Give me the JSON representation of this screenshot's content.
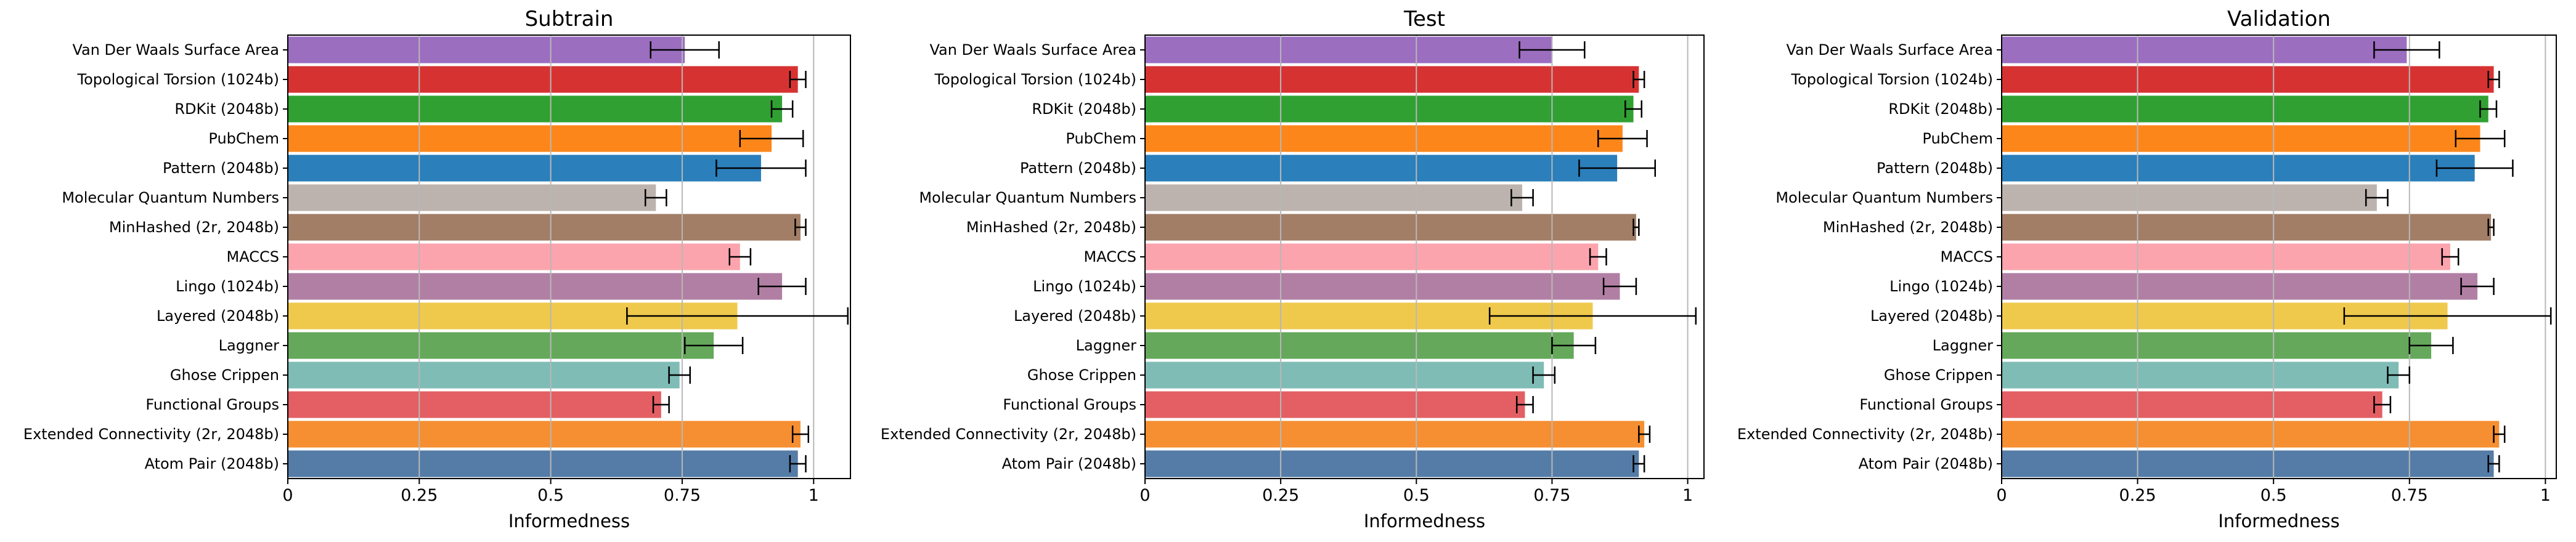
{
  "chart_data": [
    {
      "type": "bar",
      "orientation": "horizontal",
      "title": "Subtrain",
      "xlabel": "Informedness",
      "ylabel": "",
      "xlim": [
        0,
        1.07
      ],
      "xticks": [
        0,
        0.25,
        0.5,
        0.75,
        1
      ],
      "xtick_labels": [
        "0",
        "0.25",
        "0.5",
        "0.75",
        "1"
      ],
      "grid": "vertical",
      "categories": [
        "Van Der Waals Surface Area",
        "Topological Torsion (1024b)",
        "RDKit (2048b)",
        "PubChem",
        "Pattern (2048b)",
        "Molecular Quantum Numbers",
        "MinHashed (2r, 2048b)",
        "MACCS",
        "Lingo (1024b)",
        "Layered (2048b)",
        "Laggner",
        "Ghose Crippen",
        "Functional Groups",
        "Extended Connectivity (2r, 2048b)",
        "Atom Pair (2048b)"
      ],
      "values": [
        0.755,
        0.97,
        0.94,
        0.92,
        0.9,
        0.7,
        0.975,
        0.86,
        0.94,
        0.855,
        0.81,
        0.745,
        0.71,
        0.975,
        0.97
      ],
      "errors": [
        0.065,
        0.015,
        0.02,
        0.06,
        0.085,
        0.02,
        0.01,
        0.02,
        0.045,
        0.21,
        0.055,
        0.02,
        0.015,
        0.015,
        0.015
      ]
    },
    {
      "type": "bar",
      "orientation": "horizontal",
      "title": "Test",
      "xlabel": "Informedness",
      "ylabel": "",
      "xlim": [
        0,
        1.03
      ],
      "xticks": [
        0,
        0.25,
        0.5,
        0.75,
        1
      ],
      "xtick_labels": [
        "0",
        "0.25",
        "0.5",
        "0.75",
        "1"
      ],
      "grid": "vertical",
      "categories": [
        "Van Der Waals Surface Area",
        "Topological Torsion (1024b)",
        "RDKit (2048b)",
        "PubChem",
        "Pattern (2048b)",
        "Molecular Quantum Numbers",
        "MinHashed (2r, 2048b)",
        "MACCS",
        "Lingo (1024b)",
        "Layered (2048b)",
        "Laggner",
        "Ghose Crippen",
        "Functional Groups",
        "Extended Connectivity (2r, 2048b)",
        "Atom Pair (2048b)"
      ],
      "values": [
        0.75,
        0.91,
        0.9,
        0.88,
        0.87,
        0.695,
        0.905,
        0.835,
        0.875,
        0.825,
        0.79,
        0.735,
        0.7,
        0.92,
        0.91
      ],
      "errors": [
        0.06,
        0.01,
        0.015,
        0.045,
        0.07,
        0.02,
        0.005,
        0.015,
        0.03,
        0.19,
        0.04,
        0.02,
        0.015,
        0.01,
        0.01
      ]
    },
    {
      "type": "bar",
      "orientation": "horizontal",
      "title": "Validation",
      "xlabel": "Informedness",
      "ylabel": "",
      "xlim": [
        0,
        1.02
      ],
      "xticks": [
        0,
        0.25,
        0.5,
        0.75,
        1
      ],
      "xtick_labels": [
        "0",
        "0.25",
        "0.5",
        "0.75",
        "1"
      ],
      "grid": "vertical",
      "categories": [
        "Van Der Waals Surface Area",
        "Topological Torsion (1024b)",
        "RDKit (2048b)",
        "PubChem",
        "Pattern (2048b)",
        "Molecular Quantum Numbers",
        "MinHashed (2r, 2048b)",
        "MACCS",
        "Lingo (1024b)",
        "Layered (2048b)",
        "Laggner",
        "Ghose Crippen",
        "Functional Groups",
        "Extended Connectivity (2r, 2048b)",
        "Atom Pair (2048b)"
      ],
      "values": [
        0.745,
        0.905,
        0.895,
        0.88,
        0.87,
        0.69,
        0.9,
        0.825,
        0.875,
        0.82,
        0.79,
        0.73,
        0.7,
        0.915,
        0.905
      ],
      "errors": [
        0.06,
        0.01,
        0.015,
        0.045,
        0.07,
        0.02,
        0.005,
        0.015,
        0.03,
        0.19,
        0.04,
        0.02,
        0.015,
        0.01,
        0.01
      ]
    }
  ],
  "colors": [
    "#9b6ec0",
    "#d73232",
    "#31a032",
    "#fd861a",
    "#2b7fbb",
    "#bcb3ae",
    "#a27e67",
    "#fca4ad",
    "#b27fa4",
    "#efc94c",
    "#65a85b",
    "#7fbcb6",
    "#e35f63",
    "#f58f32",
    "#557ca7"
  ]
}
